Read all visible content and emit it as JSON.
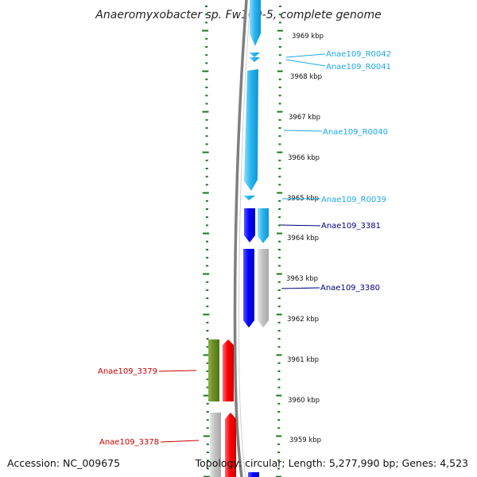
{
  "title": "Anaeromyxobacter sp. Fw109-5, complete genome",
  "footer": {
    "accession": "Accession: NC_009675",
    "summary": "Topology: circular; Length: 5,277,990 bp; Genes: 4,523"
  },
  "colors": {
    "tick": "#1a7a1a",
    "backbone": "#7f7f7f",
    "rrna_light": "#29b6f0",
    "cds_blue": "#0000ff",
    "cds_gray": "#c2c2c2",
    "cds_olive": "#6b8e23",
    "cds_red": "#ff0000",
    "label_cyan": "#1aa7e8",
    "label_navy": "#000080",
    "label_red": "#cc0000"
  },
  "scale_labels": [
    "3969 kbp",
    "3968 kbp",
    "3967 kbp",
    "3966 kbp",
    "3965 kbp",
    "3964 kbp",
    "3963 kbp",
    "3962 kbp",
    "3961 kbp",
    "3960 kbp",
    "3959 kbp"
  ],
  "feature_labels": [
    {
      "text": "Anae109_R0042",
      "color": "#1aa7e8",
      "side": "right"
    },
    {
      "text": "Anae109_R0041",
      "color": "#1aa7e8",
      "side": "right"
    },
    {
      "text": "Anae109_R0040",
      "color": "#1aa7e8",
      "side": "right"
    },
    {
      "text": "Anae109_R0039",
      "color": "#1aa7e8",
      "side": "right"
    },
    {
      "text": "Anae109_3381",
      "color": "#000080",
      "side": "right"
    },
    {
      "text": "Anae109_3380",
      "color": "#000080",
      "side": "right"
    },
    {
      "text": "Anae109_3379",
      "color": "#cc0000",
      "side": "left"
    },
    {
      "text": "Anae109_3378",
      "color": "#cc0000",
      "side": "left"
    }
  ]
}
